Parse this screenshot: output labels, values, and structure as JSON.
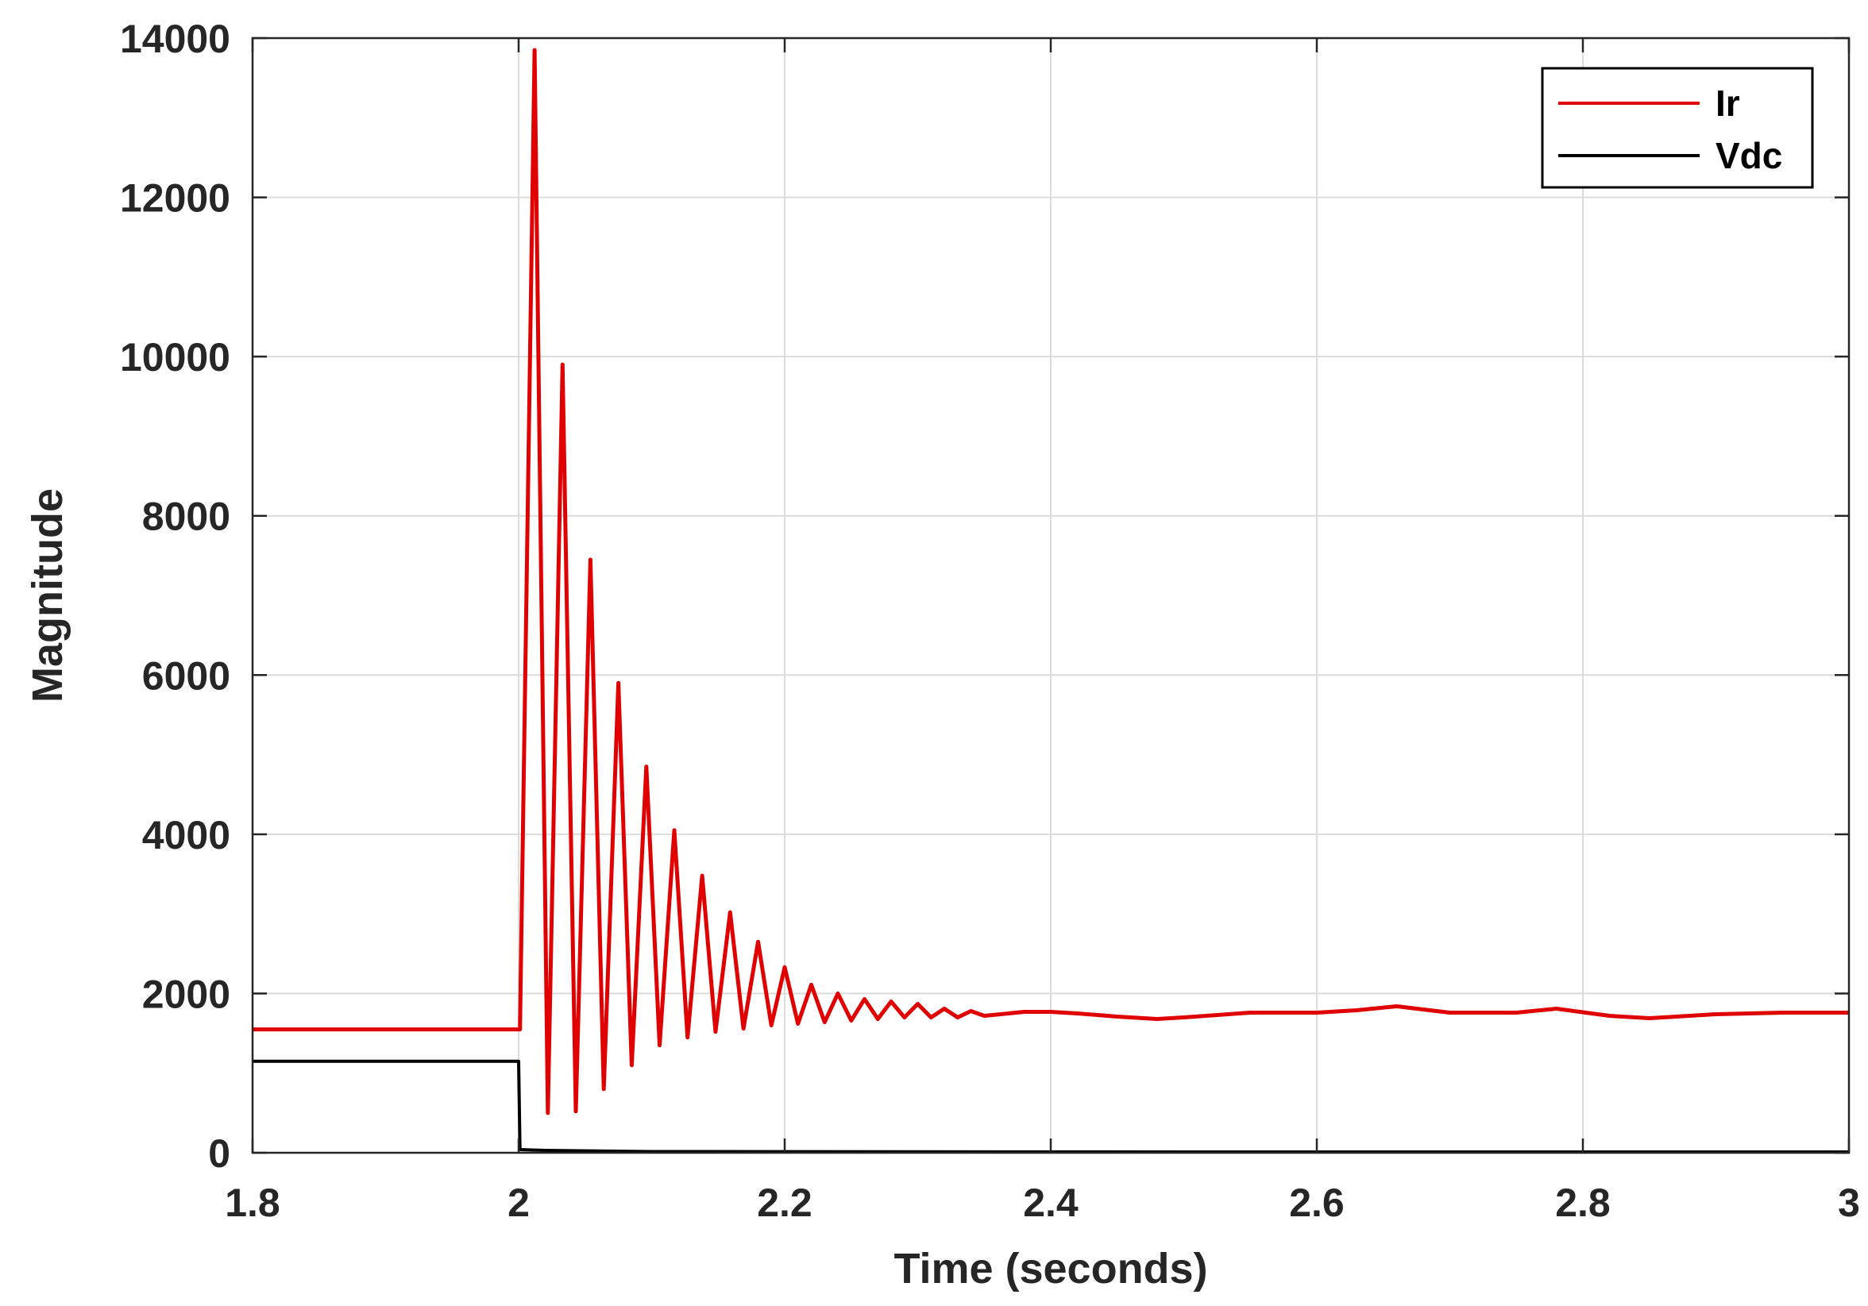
{
  "chart_data": {
    "type": "line",
    "title": "",
    "xlabel": "Time (seconds)",
    "ylabel": "Magnitude",
    "xlim": [
      1.8,
      3.0
    ],
    "ylim": [
      0,
      14000
    ],
    "x_ticks": [
      "1.8",
      "2",
      "2.2",
      "2.4",
      "2.6",
      "2.8",
      "3"
    ],
    "y_ticks": [
      "0",
      "2000",
      "4000",
      "6000",
      "8000",
      "10000",
      "12000",
      "14000"
    ],
    "grid": true,
    "legend_position": "top-right",
    "series": [
      {
        "name": "Ir",
        "color": "#e00000",
        "x": [
          1.8,
          2.0,
          2.001,
          2.012,
          2.022,
          2.033,
          2.043,
          2.054,
          2.064,
          2.075,
          2.085,
          2.096,
          2.106,
          2.117,
          2.127,
          2.138,
          2.148,
          2.159,
          2.169,
          2.18,
          2.19,
          2.2,
          2.21,
          2.22,
          2.23,
          2.24,
          2.25,
          2.26,
          2.27,
          2.28,
          2.29,
          2.3,
          2.31,
          2.32,
          2.33,
          2.34,
          2.35,
          2.38,
          2.4,
          2.42,
          2.45,
          2.48,
          2.5,
          2.55,
          2.6,
          2.63,
          2.66,
          2.7,
          2.75,
          2.78,
          2.82,
          2.85,
          2.9,
          2.95,
          3.0
        ],
        "y": [
          1550,
          1550,
          1550,
          13850,
          500,
          9900,
          520,
          7450,
          800,
          5900,
          1100,
          4850,
          1350,
          4050,
          1450,
          3480,
          1520,
          3020,
          1560,
          2650,
          1600,
          2330,
          1620,
          2110,
          1640,
          2000,
          1660,
          1930,
          1680,
          1900,
          1700,
          1870,
          1700,
          1810,
          1700,
          1780,
          1720,
          1770,
          1770,
          1750,
          1710,
          1680,
          1700,
          1760,
          1760,
          1790,
          1840,
          1760,
          1760,
          1810,
          1720,
          1690,
          1740,
          1760,
          1760
        ]
      },
      {
        "name": "Vdc",
        "color": "#000000",
        "x": [
          1.8,
          2.0,
          2.001,
          2.02,
          2.1,
          2.5,
          3.0
        ],
        "y": [
          1150,
          1150,
          40,
          30,
          15,
          10,
          10
        ]
      }
    ]
  }
}
